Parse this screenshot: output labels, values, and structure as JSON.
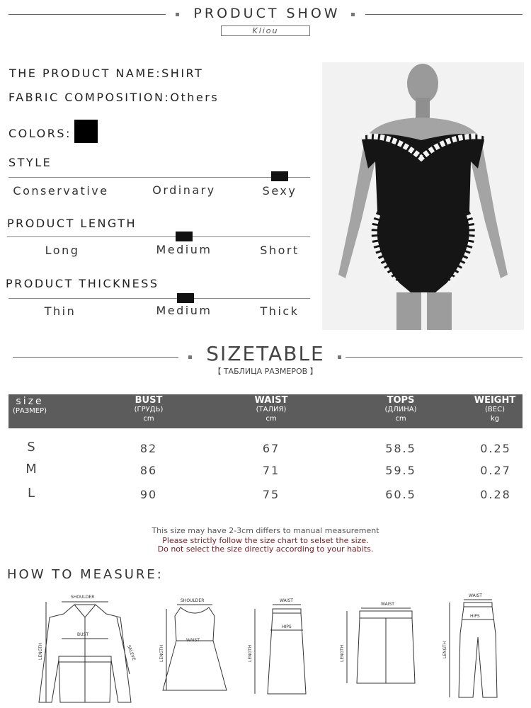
{
  "header": {
    "title": "PRODUCT SHOW",
    "brand": "Kliou"
  },
  "specs": {
    "name_label": "THE PRODUCT NAME:",
    "name": "SHIRT",
    "fabric_label": "FABRIC COMPOSITION:",
    "fabric": "Others",
    "colors_label": "COLORS:",
    "color_swatch": "#000000",
    "style": {
      "title": "STYLE",
      "options": [
        "Conservative",
        "Ordinary",
        "Sexy"
      ],
      "selected": "Sexy"
    },
    "length": {
      "title": "PRODUCT LENGTH",
      "options": [
        "Long",
        "Medium",
        "Short"
      ],
      "selected": "Medium"
    },
    "thickness": {
      "title": "PRODUCT THICKNESS",
      "options": [
        "Thin",
        "Medium",
        "Thick"
      ],
      "selected": "Medium"
    }
  },
  "sizetable": {
    "title": "SIZETABLE",
    "subtitle": "【 ТАБЛИЦА РАЗМЕРОВ 】",
    "columns": [
      {
        "label": "size",
        "sub": "(РАЗМЕР)",
        "unit": ""
      },
      {
        "label": "BUST",
        "sub": "(ГРУДЬ)",
        "unit": "cm"
      },
      {
        "label": "WAIST",
        "sub": "(ТАЛИЯ)",
        "unit": "cm"
      },
      {
        "label": "TOPS",
        "sub": "(ДЛИНА)",
        "unit": "cm"
      },
      {
        "label": "WEIGHT",
        "sub": "(ВЕС)",
        "unit": "kg"
      }
    ],
    "rows": [
      [
        "S",
        "82",
        "67",
        "58.5",
        "0.25"
      ],
      [
        "M",
        "86",
        "71",
        "59.5",
        "0.27"
      ],
      [
        "L",
        "90",
        "75",
        "60.5",
        "0.28"
      ]
    ],
    "note": "This size may have 2-3cm differs to manual measurement",
    "warning1": "Please strictly follow the size chart to selset the size.",
    "warning2": "Do not select the size directly according to your habits."
  },
  "measure": {
    "title": "HOW TO MEASURE:",
    "labels": {
      "shoulder": "SHOULDER",
      "bust": "BUST",
      "length": "LENGTH",
      "sleeve": "SELEVE",
      "waist": "WAIST",
      "hips": "HIPS"
    }
  }
}
